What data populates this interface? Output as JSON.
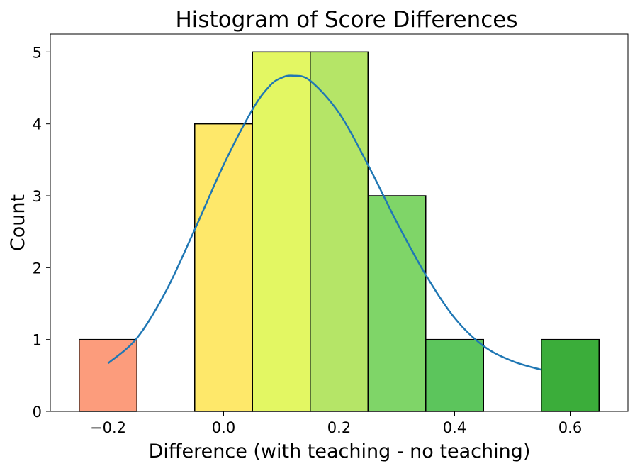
{
  "chart_data": {
    "type": "bar",
    "subtype": "histogram",
    "title": "Histogram of Score Differences",
    "xlabel": "Difference (with teaching - no teaching)",
    "ylabel": "Count",
    "xlim": [
      -0.3,
      0.7
    ],
    "ylim": [
      0,
      5.25
    ],
    "x_ticks": [
      -0.2,
      0.0,
      0.2,
      0.4,
      0.6
    ],
    "x_tick_labels": [
      "−0.2",
      "0.0",
      "0.2",
      "0.4",
      "0.6"
    ],
    "y_ticks": [
      0,
      1,
      2,
      3,
      4,
      5
    ],
    "y_tick_labels": [
      "0",
      "1",
      "2",
      "3",
      "4",
      "5"
    ],
    "grid": false,
    "bins": [
      {
        "start": -0.25,
        "end": -0.15,
        "count": 1,
        "color": "#fc9c7c"
      },
      {
        "start": -0.15,
        "end": -0.05,
        "count": 0,
        "color": "#fdb468"
      },
      {
        "start": -0.05,
        "end": 0.05,
        "count": 4,
        "color": "#fee86a"
      },
      {
        "start": 0.05,
        "end": 0.15,
        "count": 5,
        "color": "#e3f763"
      },
      {
        "start": 0.15,
        "end": 0.25,
        "count": 5,
        "color": "#b5e567"
      },
      {
        "start": 0.25,
        "end": 0.35,
        "count": 3,
        "color": "#7fd568"
      },
      {
        "start": 0.35,
        "end": 0.45,
        "count": 1,
        "color": "#5cc55c"
      },
      {
        "start": 0.45,
        "end": 0.55,
        "count": 0,
        "color": "#4bb84a"
      },
      {
        "start": 0.55,
        "end": 0.65,
        "count": 1,
        "color": "#3bad3a"
      }
    ],
    "kde_curve": {
      "color": "#1f77b4",
      "x": [
        -0.2,
        -0.15,
        -0.1,
        -0.05,
        0.0,
        0.05,
        0.08,
        0.1,
        0.12,
        0.15,
        0.2,
        0.25,
        0.3,
        0.35,
        0.4,
        0.45,
        0.5,
        0.55
      ],
      "y": [
        0.67,
        1.02,
        1.67,
        2.53,
        3.43,
        4.2,
        4.53,
        4.64,
        4.67,
        4.6,
        4.15,
        3.43,
        2.63,
        1.9,
        1.3,
        0.91,
        0.7,
        0.58
      ]
    }
  }
}
